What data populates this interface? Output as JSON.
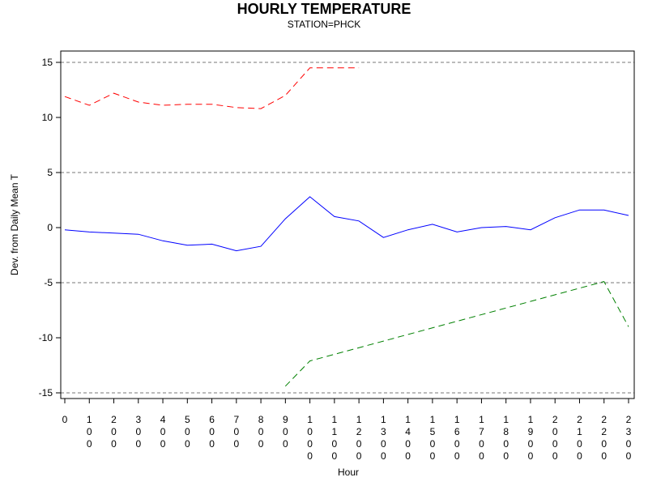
{
  "chart_data": {
    "type": "line",
    "title": "HOURLY TEMPERATURE",
    "subtitle": "STATION=PHCK",
    "xlabel": "Hour",
    "ylabel": "Dev. from Daily Mean T",
    "x_ticks": [
      "0",
      "100",
      "200",
      "300",
      "400",
      "500",
      "600",
      "700",
      "800",
      "900",
      "1000",
      "1100",
      "1200",
      "1300",
      "1400",
      "1500",
      "1600",
      "1700",
      "1800",
      "1900",
      "2000",
      "2100",
      "2200",
      "2300"
    ],
    "y_ticks": [
      15,
      10,
      5,
      0,
      -5,
      -10,
      -15
    ],
    "ylim": [
      -15,
      15
    ],
    "xlim": [
      0,
      2300
    ],
    "reference_lines": [
      15,
      5,
      -5,
      -15
    ],
    "grid": false,
    "series": [
      {
        "color": "#ff0000",
        "style": "dashed",
        "x": [
          0,
          100,
          200,
          300,
          400,
          500,
          600,
          700,
          800,
          900,
          1000,
          1100,
          1200
        ],
        "values": [
          11.9,
          11.1,
          12.2,
          11.4,
          11.1,
          11.2,
          11.2,
          10.9,
          10.8,
          12.0,
          14.5,
          14.5,
          14.5
        ]
      },
      {
        "color": "#0000ff",
        "style": "solid",
        "x": [
          0,
          100,
          200,
          300,
          400,
          500,
          600,
          700,
          800,
          900,
          1000,
          1100,
          1200,
          1300,
          1400,
          1500,
          1600,
          1700,
          1800,
          1900,
          2000,
          2100,
          2200,
          2300
        ],
        "values": [
          -0.2,
          -0.4,
          -0.5,
          -0.6,
          -1.2,
          -1.6,
          -1.5,
          -2.1,
          -1.7,
          0.8,
          2.8,
          1.0,
          0.6,
          -0.9,
          -0.2,
          0.3,
          -0.4,
          0.0,
          0.1,
          -0.2,
          0.9,
          1.6,
          1.6,
          1.1
        ]
      },
      {
        "color": "#008000",
        "style": "dashed",
        "x": [
          900,
          1000,
          2200,
          2300
        ],
        "values": [
          -14.4,
          -12.1,
          -4.9,
          -9.0
        ]
      }
    ]
  }
}
